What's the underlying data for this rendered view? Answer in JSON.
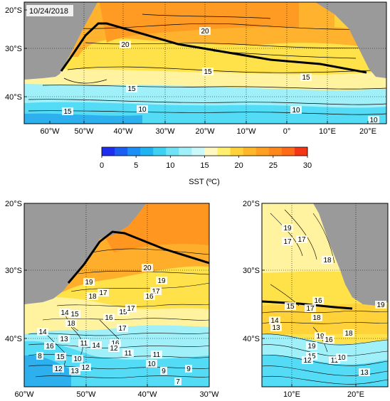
{
  "date_label": "10/24/2018",
  "colorbar": {
    "title": "SST (ºC)",
    "ticks": [
      "0",
      "5",
      "10",
      "15",
      "20",
      "25",
      "30"
    ],
    "colors": [
      "#1e2df0",
      "#1a5ef2",
      "#1a8ff5",
      "#1fb3f2",
      "#3fd1f2",
      "#70e2f5",
      "#9ff0f8",
      "#ccf8fa",
      "#fff8c0",
      "#ffef6e",
      "#ffd23a",
      "#ffb72a",
      "#ffa022",
      "#ff881d",
      "#ff6a18",
      "#f43616"
    ]
  },
  "colors": {
    "land": "#9a9a9a",
    "warm": "#ffa830",
    "hot": "#ff8a1e",
    "yellow": "#ffe24a",
    "paleyellow": "#fff3a0",
    "cyan": "#54dcf6",
    "lightcyan": "#a6f0f9",
    "blue": "#2fb0ee"
  },
  "top_map": {
    "x_ticks": [
      "60°W",
      "50°W",
      "40°W",
      "30°W",
      "20°W",
      "10°W",
      "0°",
      "10°E",
      "20°E"
    ],
    "y_ticks": [
      "20°S",
      "30°S",
      "40°S"
    ],
    "contour_labels": [
      "20",
      "20",
      "15",
      "15",
      "15",
      "15",
      "10",
      "10",
      "10"
    ]
  },
  "left_map": {
    "x_ticks": [
      "60°W",
      "50°W",
      "40°W",
      "30°W"
    ],
    "y_ticks": [
      "20°S",
      "30°S",
      "40°S"
    ],
    "contour_labels": [
      "20",
      "19",
      "17",
      "16",
      "17",
      "15",
      "14",
      "16",
      "15",
      "18",
      "17",
      "16",
      "14",
      "13",
      "12",
      "10",
      "8",
      "11",
      "11",
      "9",
      "10",
      "9",
      "7",
      "12",
      "13",
      "15",
      "16",
      "12",
      "11",
      "14",
      "18",
      "19",
      "17"
    ]
  },
  "right_map": {
    "x_ticks": [
      "10°E",
      "20°E"
    ],
    "y_ticks": [
      "20°S",
      "30°S",
      "40°S"
    ],
    "contour_labels": [
      "19",
      "17",
      "17",
      "18",
      "16",
      "15",
      "17",
      "18",
      "19",
      "13",
      "14",
      "19",
      "16",
      "15",
      "12",
      "11",
      "10",
      "13",
      "19",
      "18"
    ]
  }
}
